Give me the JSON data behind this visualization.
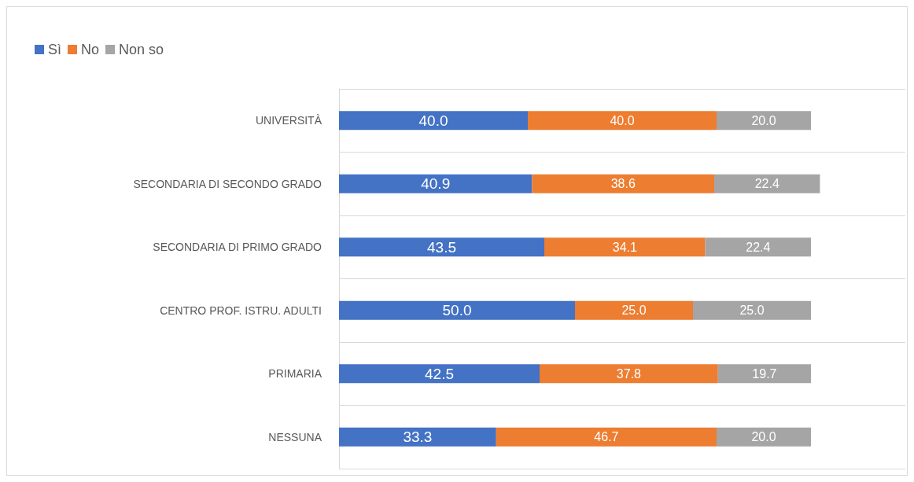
{
  "chart_data": {
    "type": "bar",
    "orientation": "horizontal",
    "stacked": true,
    "grid": "y",
    "legend": "top left",
    "categories": [
      "UNIVERSITÀ",
      "SECONDARIA DI SECONDO GRADO",
      "SECONDARIA DI PRIMO GRADO",
      "CENTRO PROF. ISTRU. ADULTI",
      "PRIMARIA",
      "NESSUNA"
    ],
    "series": [
      {
        "name": "Sì",
        "color": "#4472c4",
        "values": [
          40,
          40.9,
          43.5,
          50,
          42.5,
          33.3
        ],
        "value_labels": [
          "40.0",
          "40.9",
          "43.5",
          "50.0",
          "42.5",
          "33.3"
        ]
      },
      {
        "name": "No",
        "color": "#ed7d31",
        "values": [
          40,
          38.6,
          34.1,
          25,
          37.8,
          46.7
        ],
        "value_labels": [
          "40.0",
          "38.6",
          "34.1",
          "25.0",
          "37.8",
          "46.7"
        ]
      },
      {
        "name": "Non so",
        "color": "#a5a5a5",
        "values": [
          20,
          22.4,
          22.4,
          25,
          19.7,
          20
        ],
        "value_labels": [
          "20.0",
          "22.4",
          "22.4",
          "25.0",
          "19.7",
          "20.0"
        ]
      }
    ]
  }
}
